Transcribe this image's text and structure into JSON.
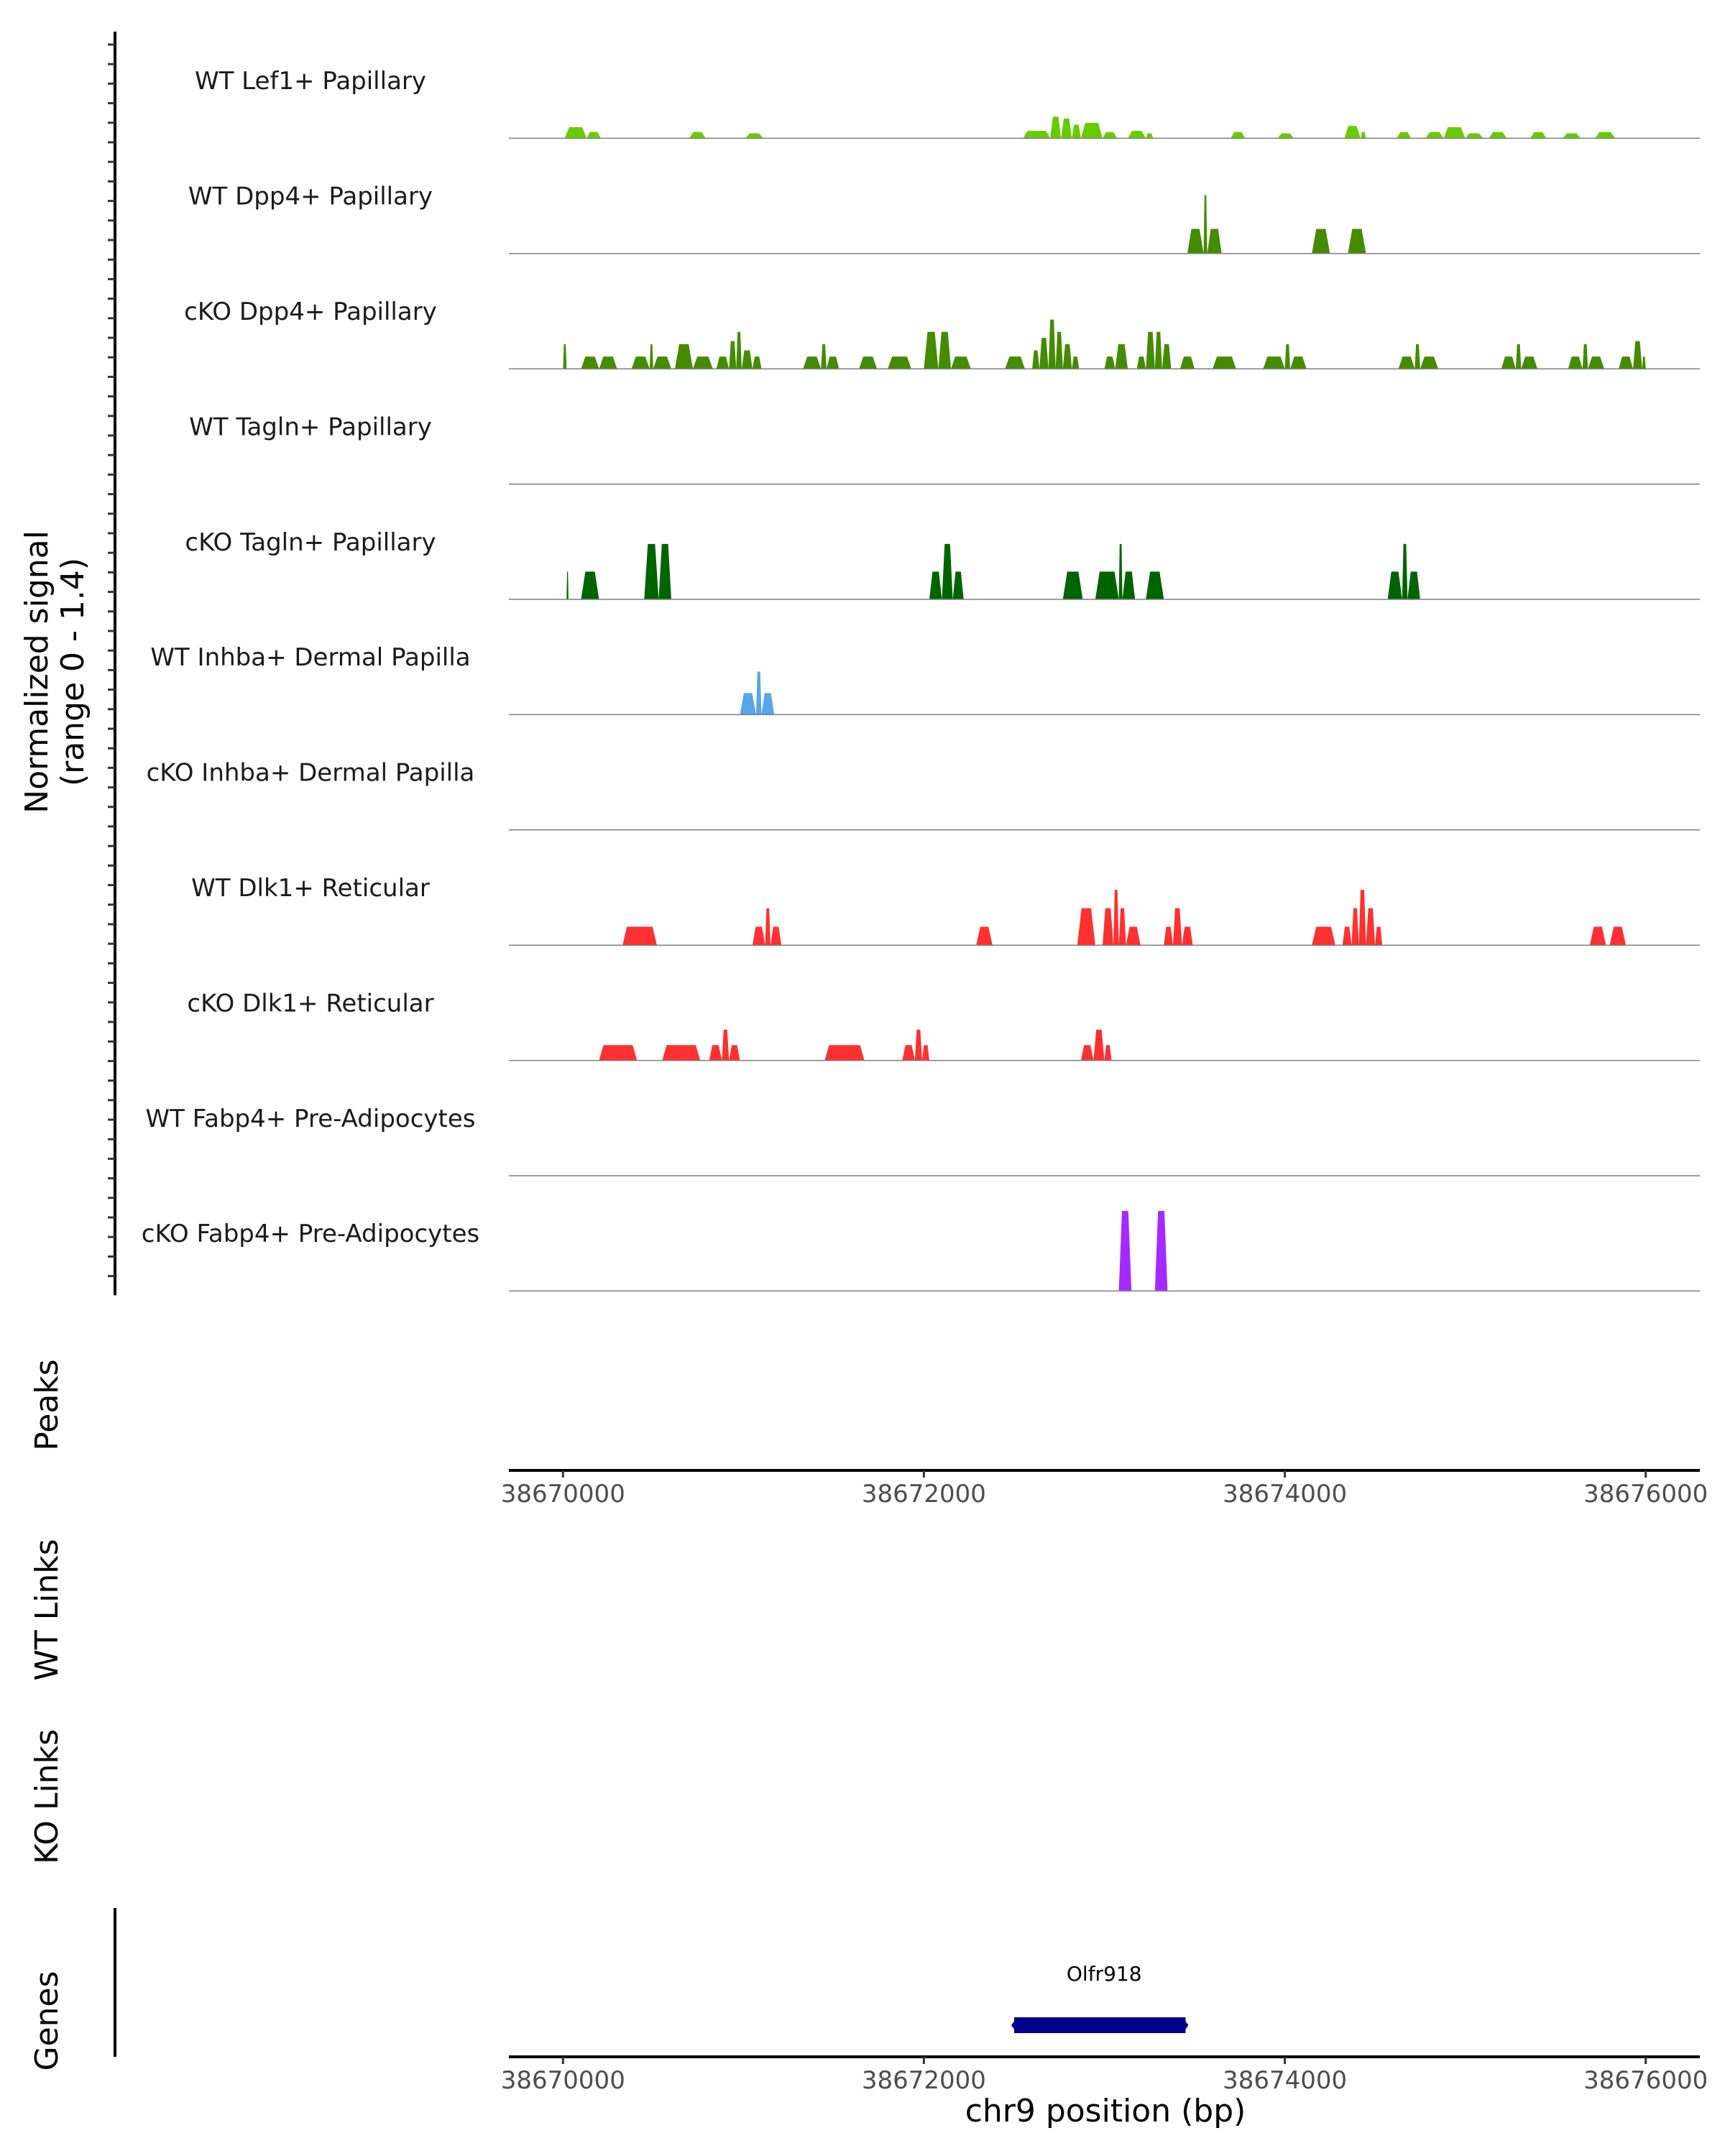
{
  "chart_data": {
    "type": "area",
    "coverage": {
      "ylabel_line1": "Normalized signal",
      "ylabel_line2": "(range 0 - 1.4)",
      "ylim": [
        0,
        1.4
      ],
      "xlim": [
        38669700,
        38676300
      ],
      "tracks": [
        {
          "name": "WT Lef1+ Papillary",
          "color": "#66CC00",
          "peaks": [
            [
              38670010,
              38670130,
              0.18
            ],
            [
              38670130,
              38670210,
              0.1
            ],
            [
              38670700,
              38670790,
              0.1
            ],
            [
              38671010,
              38671110,
              0.08
            ],
            [
              38672550,
              38672700,
              0.12
            ],
            [
              38672700,
              38672760,
              0.35
            ],
            [
              38672760,
              38672820,
              0.32
            ],
            [
              38672820,
              38672870,
              0.22
            ],
            [
              38672870,
              38672990,
              0.25
            ],
            [
              38672990,
              38673070,
              0.1
            ],
            [
              38673130,
              38673230,
              0.12
            ],
            [
              38673230,
              38673270,
              0.08
            ],
            [
              38673700,
              38673780,
              0.1
            ],
            [
              38673960,
              38674050,
              0.08
            ],
            [
              38674330,
              38674420,
              0.2
            ],
            [
              38674420,
              38674450,
              0.1
            ],
            [
              38674620,
              38674700,
              0.1
            ],
            [
              38674780,
              38674880,
              0.1
            ],
            [
              38674880,
              38675000,
              0.18
            ],
            [
              38675000,
              38675100,
              0.08
            ],
            [
              38675130,
              38675230,
              0.1
            ],
            [
              38675360,
              38675450,
              0.1
            ],
            [
              38675540,
              38675640,
              0.08
            ],
            [
              38675720,
              38675830,
              0.1
            ]
          ]
        },
        {
          "name": "WT Dpp4+ Papillary",
          "color": "#458B00",
          "peaks": [
            [
              38673460,
              38673550,
              0.4
            ],
            [
              38673550,
              38673570,
              0.95
            ],
            [
              38673570,
              38673650,
              0.4
            ],
            [
              38674150,
              38674250,
              0.4
            ],
            [
              38674350,
              38674450,
              0.4
            ]
          ]
        },
        {
          "name": "cKO Dpp4+ Papillary",
          "color": "#458B00",
          "peaks": [
            [
              38670000,
              38670020,
              0.4
            ],
            [
              38670100,
              38670200,
              0.2
            ],
            [
              38670200,
              38670300,
              0.2
            ],
            [
              38670380,
              38670480,
              0.2
            ],
            [
              38670480,
              38670500,
              0.4
            ],
            [
              38670500,
              38670600,
              0.2
            ],
            [
              38670620,
              38670720,
              0.4
            ],
            [
              38670720,
              38670830,
              0.2
            ],
            [
              38670850,
              38670920,
              0.2
            ],
            [
              38670920,
              38670960,
              0.45
            ],
            [
              38670960,
              38670990,
              0.6
            ],
            [
              38670990,
              38671050,
              0.3
            ],
            [
              38671050,
              38671100,
              0.2
            ],
            [
              38671330,
              38671430,
              0.2
            ],
            [
              38671430,
              38671460,
              0.4
            ],
            [
              38671460,
              38671530,
              0.2
            ],
            [
              38671640,
              38671740,
              0.2
            ],
            [
              38671800,
              38671930,
              0.2
            ],
            [
              38672000,
              38672080,
              0.6
            ],
            [
              38672080,
              38672150,
              0.6
            ],
            [
              38672150,
              38672260,
              0.2
            ],
            [
              38672450,
              38672560,
              0.2
            ],
            [
              38672600,
              38672640,
              0.3
            ],
            [
              38672640,
              38672690,
              0.5
            ],
            [
              38672690,
              38672730,
              0.8
            ],
            [
              38672730,
              38672770,
              0.6
            ],
            [
              38672770,
              38672820,
              0.4
            ],
            [
              38672820,
              38672860,
              0.2
            ],
            [
              38673000,
              38673060,
              0.2
            ],
            [
              38673060,
              38673130,
              0.4
            ],
            [
              38673180,
              38673230,
              0.2
            ],
            [
              38673230,
              38673280,
              0.6
            ],
            [
              38673280,
              38673320,
              0.6
            ],
            [
              38673320,
              38673370,
              0.4
            ],
            [
              38673420,
              38673500,
              0.2
            ],
            [
              38673600,
              38673730,
              0.2
            ],
            [
              38673880,
              38674000,
              0.2
            ],
            [
              38674000,
              38674030,
              0.4
            ],
            [
              38674030,
              38674120,
              0.2
            ],
            [
              38674630,
              38674720,
              0.2
            ],
            [
              38674720,
              38674750,
              0.4
            ],
            [
              38674750,
              38674850,
              0.2
            ],
            [
              38675200,
              38675280,
              0.2
            ],
            [
              38675280,
              38675310,
              0.4
            ],
            [
              38675310,
              38675400,
              0.2
            ],
            [
              38675570,
              38675650,
              0.2
            ],
            [
              38675650,
              38675680,
              0.4
            ],
            [
              38675680,
              38675770,
              0.2
            ],
            [
              38675850,
              38675930,
              0.2
            ],
            [
              38675930,
              38675980,
              0.45
            ],
            [
              38675980,
              38676000,
              0.2
            ]
          ]
        },
        {
          "name": "WT Tagln+ Papillary",
          "color": "#006400",
          "peaks": []
        },
        {
          "name": "cKO Tagln+ Papillary",
          "color": "#006400",
          "peaks": [
            [
              38670020,
              38670030,
              0.45
            ],
            [
              38670100,
              38670200,
              0.45
            ],
            [
              38670450,
              38670530,
              0.9
            ],
            [
              38670530,
              38670600,
              0.9
            ],
            [
              38672030,
              38672100,
              0.45
            ],
            [
              38672100,
              38672160,
              0.9
            ],
            [
              38672160,
              38672220,
              0.45
            ],
            [
              38672770,
              38672880,
              0.45
            ],
            [
              38672950,
              38673080,
              0.45
            ],
            [
              38673080,
              38673100,
              0.9
            ],
            [
              38673100,
              38673170,
              0.45
            ],
            [
              38673230,
              38673330,
              0.45
            ],
            [
              38674570,
              38674650,
              0.45
            ],
            [
              38674650,
              38674680,
              0.9
            ],
            [
              38674680,
              38674750,
              0.45
            ]
          ]
        },
        {
          "name": "WT Inhba+ Dermal Papilla",
          "color": "#56A6EA",
          "peaks": [
            [
              38670980,
              38671070,
              0.35
            ],
            [
              38671070,
              38671100,
              0.7
            ],
            [
              38671100,
              38671170,
              0.35
            ]
          ]
        },
        {
          "name": "cKO Inhba+ Dermal Papilla",
          "color": "#56A6EA",
          "peaks": []
        },
        {
          "name": "WT Dlk1+ Reticular",
          "color": "#FF3030",
          "peaks": [
            [
              38670330,
              38670520,
              0.3
            ],
            [
              38671050,
              38671120,
              0.3
            ],
            [
              38671120,
              38671150,
              0.6
            ],
            [
              38671150,
              38671210,
              0.3
            ],
            [
              38672290,
              38672380,
              0.3
            ],
            [
              38672850,
              38672950,
              0.6
            ],
            [
              38672990,
              38673050,
              0.6
            ],
            [
              38673050,
              38673080,
              0.9
            ],
            [
              38673080,
              38673120,
              0.6
            ],
            [
              38673120,
              38673200,
              0.3
            ],
            [
              38673330,
              38673380,
              0.3
            ],
            [
              38673380,
              38673430,
              0.6
            ],
            [
              38673430,
              38673490,
              0.3
            ],
            [
              38674150,
              38674280,
              0.3
            ],
            [
              38674320,
              38674370,
              0.3
            ],
            [
              38674370,
              38674410,
              0.6
            ],
            [
              38674410,
              38674450,
              0.9
            ],
            [
              38674450,
              38674500,
              0.6
            ],
            [
              38674500,
              38674540,
              0.3
            ],
            [
              38675690,
              38675780,
              0.3
            ],
            [
              38675800,
              38675890,
              0.3
            ]
          ]
        },
        {
          "name": "cKO Dlk1+ Reticular",
          "color": "#FF3030",
          "peaks": [
            [
              38670200,
              38670410,
              0.25
            ],
            [
              38670550,
              38670760,
              0.25
            ],
            [
              38670810,
              38670880,
              0.25
            ],
            [
              38670880,
              38670920,
              0.5
            ],
            [
              38670920,
              38670980,
              0.25
            ],
            [
              38671450,
              38671670,
              0.25
            ],
            [
              38671880,
              38671950,
              0.25
            ],
            [
              38671950,
              38671990,
              0.5
            ],
            [
              38671990,
              38672030,
              0.25
            ],
            [
              38672870,
              38672940,
              0.25
            ],
            [
              38672940,
              38673000,
              0.5
            ],
            [
              38673000,
              38673040,
              0.25
            ]
          ]
        },
        {
          "name": "WT Fabp4+ Pre-Adipocytes",
          "color": "#A52AFF",
          "peaks": []
        },
        {
          "name": "cKO Fabp4+ Pre-Adipocytes",
          "color": "#A52AFF",
          "peaks": [
            [
              38673080,
              38673150,
              1.3
            ],
            [
              38673280,
              38673350,
              1.3
            ]
          ]
        }
      ]
    },
    "panels": {
      "peaks": "Peaks",
      "wt_links": "WT Links",
      "ko_links": "KO Links",
      "genes": "Genes"
    },
    "x_ticks": [
      38670000,
      38672000,
      38674000,
      38676000
    ],
    "x_tick_labels": [
      "38670000",
      "38672000",
      "38674000",
      "38676000"
    ],
    "xlabel": "chr9 position (bp)",
    "genes": [
      {
        "name": "Olfr918",
        "start": 38672500,
        "end": 38673450,
        "color": "#00008B"
      }
    ]
  }
}
